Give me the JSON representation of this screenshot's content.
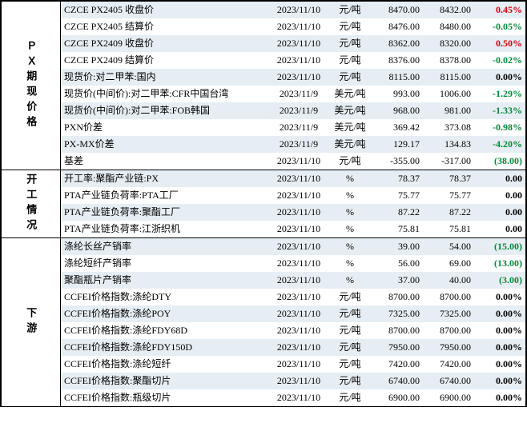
{
  "colors": {
    "alt_row_bg": "#e6eef4",
    "pos": "#d00000",
    "neg": "#008a3a",
    "zero": "#000000"
  },
  "sections": [
    {
      "label": "ＰＸ期现价格",
      "rows": [
        {
          "name": "CZCE PX2405 收盘价",
          "date": "2023/11/10",
          "unit": "元/吨",
          "v1": "8470.00",
          "v2": "8432.00",
          "chg": "0.45%",
          "dir": "pos"
        },
        {
          "name": "CZCE PX2405 结算价",
          "date": "2023/11/10",
          "unit": "元/吨",
          "v1": "8476.00",
          "v2": "8480.00",
          "chg": "-0.05%",
          "dir": "neg"
        },
        {
          "name": "CZCE PX2409 收盘价",
          "date": "2023/11/10",
          "unit": "元/吨",
          "v1": "8362.00",
          "v2": "8320.00",
          "chg": "0.50%",
          "dir": "pos"
        },
        {
          "name": "CZCE PX2409 结算价",
          "date": "2023/11/10",
          "unit": "元/吨",
          "v1": "8376.00",
          "v2": "8378.00",
          "chg": "-0.02%",
          "dir": "neg"
        },
        {
          "name": "现货价:对二甲苯:国内",
          "date": "2023/11/10",
          "unit": "元/吨",
          "v1": "8115.00",
          "v2": "8115.00",
          "chg": "0.00%",
          "dir": "zero"
        },
        {
          "name": "现货价(中间价):对二甲苯:CFR中国台湾",
          "date": "2023/11/9",
          "unit": "美元/吨",
          "v1": "993.00",
          "v2": "1006.00",
          "chg": "-1.29%",
          "dir": "neg"
        },
        {
          "name": "现货价(中间价):对二甲苯:FOB韩国",
          "date": "2023/11/9",
          "unit": "美元/吨",
          "v1": "968.00",
          "v2": "981.00",
          "chg": "-1.33%",
          "dir": "neg"
        },
        {
          "name": "PXN价差",
          "date": "2023/11/9",
          "unit": "美元/吨",
          "v1": "369.42",
          "v2": "373.08",
          "chg": "-0.98%",
          "dir": "neg"
        },
        {
          "name": "PX-MX价差",
          "date": "2023/11/9",
          "unit": "美元/吨",
          "v1": "129.17",
          "v2": "134.83",
          "chg": "-4.20%",
          "dir": "neg"
        },
        {
          "name": "基差",
          "date": "2023/11/10",
          "unit": "元/吨",
          "v1": "-355.00",
          "v2": "-317.00",
          "chg": "(38.00)",
          "dir": "neg"
        }
      ]
    },
    {
      "label": "开工情况",
      "rows": [
        {
          "name": "开工率:聚酯产业链:PX",
          "date": "2023/11/10",
          "unit": "%",
          "v1": "78.37",
          "v2": "78.37",
          "chg": "0.00",
          "dir": "zero"
        },
        {
          "name": "PTA产业链负荷率:PTA工厂",
          "date": "2023/11/10",
          "unit": "%",
          "v1": "75.77",
          "v2": "75.77",
          "chg": "0.00",
          "dir": "zero"
        },
        {
          "name": "PTA产业链负荷率:聚酯工厂",
          "date": "2023/11/10",
          "unit": "%",
          "v1": "87.22",
          "v2": "87.22",
          "chg": "0.00",
          "dir": "zero"
        },
        {
          "name": "PTA产业链负荷率:江浙织机",
          "date": "2023/11/10",
          "unit": "%",
          "v1": "75.81",
          "v2": "75.81",
          "chg": "0.00",
          "dir": "zero"
        }
      ]
    },
    {
      "label": "下游",
      "rows": [
        {
          "name": "涤纶长丝产销率",
          "date": "2023/11/10",
          "unit": "%",
          "v1": "39.00",
          "v2": "54.00",
          "chg": "(15.00)",
          "dir": "neg"
        },
        {
          "name": "涤纶短纤产销率",
          "date": "2023/11/10",
          "unit": "%",
          "v1": "56.00",
          "v2": "69.00",
          "chg": "(13.00)",
          "dir": "neg"
        },
        {
          "name": "聚酯瓶片产销率",
          "date": "2023/11/10",
          "unit": "%",
          "v1": "37.00",
          "v2": "40.00",
          "chg": "(3.00)",
          "dir": "neg"
        },
        {
          "name": "CCFEI价格指数:涤纶DTY",
          "date": "2023/11/10",
          "unit": "元/吨",
          "v1": "8700.00",
          "v2": "8700.00",
          "chg": "0.00%",
          "dir": "zero"
        },
        {
          "name": "CCFEI价格指数:涤纶POY",
          "date": "2023/11/10",
          "unit": "元/吨",
          "v1": "7325.00",
          "v2": "7325.00",
          "chg": "0.00%",
          "dir": "zero"
        },
        {
          "name": "CCFEI价格指数:涤纶FDY68D",
          "date": "2023/11/10",
          "unit": "元/吨",
          "v1": "8700.00",
          "v2": "8700.00",
          "chg": "0.00%",
          "dir": "zero"
        },
        {
          "name": "CCFEI价格指数:涤纶FDY150D",
          "date": "2023/11/10",
          "unit": "元/吨",
          "v1": "7950.00",
          "v2": "7950.00",
          "chg": "0.00%",
          "dir": "zero"
        },
        {
          "name": "CCFEI价格指数:涤纶短纤",
          "date": "2023/11/10",
          "unit": "元/吨",
          "v1": "7420.00",
          "v2": "7420.00",
          "chg": "0.00%",
          "dir": "zero"
        },
        {
          "name": "CCFEI价格指数:聚酯切片",
          "date": "2023/11/10",
          "unit": "元/吨",
          "v1": "6740.00",
          "v2": "6740.00",
          "chg": "0.00%",
          "dir": "zero"
        },
        {
          "name": "CCFEI价格指数:瓶级切片",
          "date": "2023/11/10",
          "unit": "元/吨",
          "v1": "6900.00",
          "v2": "6900.00",
          "chg": "0.00%",
          "dir": "zero"
        }
      ]
    }
  ]
}
